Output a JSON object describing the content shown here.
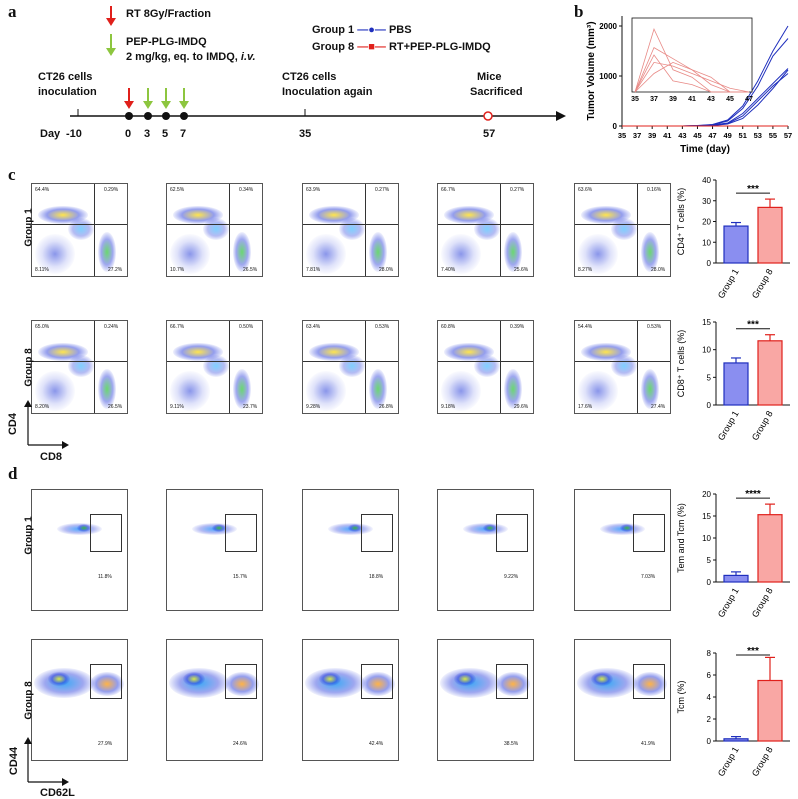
{
  "panel_labels": {
    "a": "a",
    "b": "b",
    "c": "c",
    "d": "d"
  },
  "timeline": {
    "rt": "RT 8Gy/Fraction",
    "drug_line1": "PEP-PLG-IMDQ",
    "drug_line2": "2 mg/kg, eq. to IMDQ, ",
    "drug_iv": "i.v.",
    "g1_label": "Group 1",
    "g1_desc": "PBS",
    "g8_label": "Group 8",
    "g8_desc": "RT+PEP-PLG-IMDQ",
    "inoc1_l1": "CT26 cells",
    "inoc1_l2": "inoculation",
    "inoc2_l1": "CT26 cells",
    "inoc2_l2": "Inoculation again",
    "sac_l1": "Mice",
    "sac_l2": "Sacrificed",
    "day_word": "Day",
    "days": [
      "-10",
      "0",
      "3",
      "5",
      "7",
      "35",
      "57"
    ],
    "colors": {
      "red": "#e0201b",
      "green": "#8dc63f",
      "blue": "#1f2fbd"
    }
  },
  "flow_c": {
    "row_labels": [
      "Group 1",
      "Group 8"
    ],
    "axis_y": "CD4",
    "axis_x": "CD8",
    "rows": [
      [
        [
          "64.4%",
          "0.29%",
          "8.11%",
          "27.2%"
        ],
        [
          "62.5%",
          "0.34%",
          "10.7%",
          "26.5%"
        ],
        [
          "63.9%",
          "0.27%",
          "7.81%",
          "28.0%"
        ],
        [
          "66.7%",
          "0.27%",
          "7.40%",
          "25.6%"
        ],
        [
          "63.6%",
          "0.16%",
          "8.27%",
          "28.0%"
        ]
      ],
      [
        [
          "65.0%",
          "0.24%",
          "8.20%",
          "26.5%"
        ],
        [
          "66.7%",
          "0.50%",
          "9.11%",
          "23.7%"
        ],
        [
          "63.4%",
          "0.53%",
          "9.28%",
          "26.8%"
        ],
        [
          "60.8%",
          "0.39%",
          "9.18%",
          "29.6%"
        ],
        [
          "54.4%",
          "0.53%",
          "17.6%",
          "27.4%"
        ]
      ]
    ]
  },
  "flow_d": {
    "row_labels": [
      "Group 1",
      "Group 8"
    ],
    "axis_y": "CD44",
    "axis_x": "CD62L",
    "rows": [
      [
        "11.8%",
        "15.7%",
        "18.8%",
        "9.22%",
        "7.03%"
      ],
      [
        "27.9%",
        "24.6%",
        "42.4%",
        "38.5%",
        "41.9%"
      ]
    ]
  },
  "chart_data": [
    {
      "type": "line",
      "xlabel": "Time (day)",
      "ylabel": "Tumor Volume (mm³)",
      "x": [
        35,
        37,
        39,
        41,
        43,
        45,
        47,
        49,
        51,
        53,
        55,
        57
      ],
      "xlim": [
        35,
        57
      ],
      "ylim": [
        0,
        2200
      ],
      "yticks": [
        0,
        1000,
        2000
      ],
      "series": [
        {
          "values": [
            0,
            0,
            0,
            0,
            0,
            10,
            30,
            120,
            400,
            900,
            1500,
            2000
          ],
          "color": "#1f2fbd"
        },
        {
          "values": [
            0,
            0,
            0,
            0,
            0,
            5,
            25,
            100,
            350,
            800,
            1400,
            1750
          ],
          "color": "#1f2fbd"
        },
        {
          "values": [
            0,
            0,
            0,
            0,
            0,
            5,
            20,
            60,
            250,
            550,
            850,
            1150
          ],
          "color": "#1f2fbd"
        },
        {
          "values": [
            0,
            0,
            0,
            0,
            0,
            5,
            15,
            50,
            200,
            500,
            800,
            1050
          ],
          "color": "#1f2fbd"
        },
        {
          "values": [
            0,
            0,
            0,
            0,
            0,
            0,
            10,
            40,
            150,
            420,
            750,
            1120
          ],
          "color": "#1f2fbd"
        },
        {
          "values": [
            0,
            0,
            0,
            0,
            0,
            0,
            0,
            0,
            0,
            0,
            0,
            0
          ],
          "color": "#e0201b"
        }
      ],
      "inset": {
        "x": [
          35,
          37,
          39,
          41,
          43,
          45,
          47
        ],
        "xticks": [
          35,
          37,
          39,
          41,
          43,
          45,
          47
        ],
        "series": [
          {
            "values": [
              0,
              17,
              6,
              4,
              0,
              0,
              0
            ]
          },
          {
            "values": [
              0,
              12,
              9,
              6,
              2,
              0,
              0
            ]
          },
          {
            "values": [
              0,
              8,
              7,
              5,
              3,
              1,
              0
            ]
          },
          {
            "values": [
              0,
              5,
              8,
              6,
              4,
              0,
              0
            ]
          },
          {
            "values": [
              0,
              10,
              3,
              2,
              0,
              0,
              0
            ]
          }
        ],
        "ylim": [
          0,
          20
        ]
      }
    },
    {
      "type": "bar",
      "categories": [
        "Group 1",
        "Group 8"
      ],
      "values": [
        17.8,
        26.8
      ],
      "errors": [
        1.7,
        4.0
      ],
      "ylabel": "CD4⁺ T cells (%)",
      "ylim": [
        0,
        40
      ],
      "yticks": [
        0,
        10,
        20,
        30,
        40
      ],
      "sig": "***"
    },
    {
      "type": "bar",
      "categories": [
        "Group 1",
        "Group 8"
      ],
      "values": [
        7.6,
        11.6
      ],
      "errors": [
        0.9,
        1.1
      ],
      "ylabel": "CD8⁺ T cells (%)",
      "ylim": [
        0,
        15
      ],
      "yticks": [
        0,
        5,
        10,
        15
      ],
      "sig": "***"
    },
    {
      "type": "bar",
      "categories": [
        "Group 1",
        "Group 8"
      ],
      "values": [
        1.5,
        15.3
      ],
      "errors": [
        0.8,
        2.4
      ],
      "ylabel": "Tem and Tcm (%)",
      "ylim": [
        0,
        20
      ],
      "yticks": [
        0,
        5,
        10,
        15,
        20
      ],
      "sig": "****"
    },
    {
      "type": "bar",
      "categories": [
        "Group 1",
        "Group 8"
      ],
      "values": [
        0.2,
        5.5
      ],
      "errors": [
        0.2,
        2.1
      ],
      "ylabel": "Tcm (%)",
      "ylim": [
        0,
        8
      ],
      "yticks": [
        0,
        2,
        4,
        6,
        8
      ],
      "sig": "***"
    }
  ]
}
